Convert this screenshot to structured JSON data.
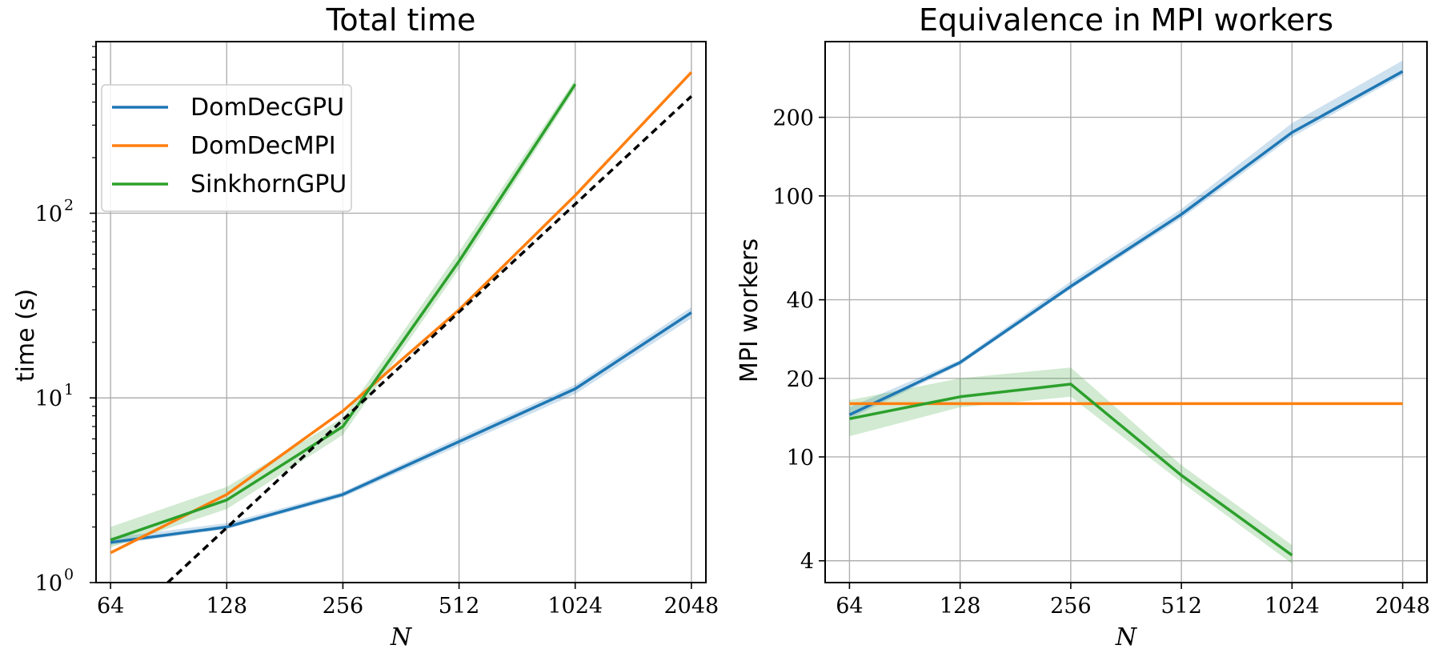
{
  "chart_data": [
    {
      "type": "line",
      "title": "Total time",
      "xlabel": "N",
      "ylabel": "time (s)",
      "xscale": "log2",
      "yscale": "log10",
      "x": [
        64,
        128,
        256,
        512,
        1024,
        2048
      ],
      "xtick_labels": [
        "64",
        "128",
        "256",
        "512",
        "1024",
        "2048"
      ],
      "ylim": [
        1,
        850
      ],
      "yticks": [
        {
          "value": 1,
          "base": "10",
          "exp": "0"
        },
        {
          "value": 10,
          "base": "10",
          "exp": "1"
        },
        {
          "value": 100,
          "base": "10",
          "exp": "2"
        }
      ],
      "grid": true,
      "legend": "upper-left",
      "series": [
        {
          "name": "DomDecGPU",
          "color": "#1f77b4",
          "x": [
            64,
            128,
            256,
            512,
            1024,
            2048
          ],
          "values": [
            1.65,
            2.0,
            3.0,
            5.8,
            11.2,
            29
          ],
          "band_low": [
            1.6,
            1.95,
            2.9,
            5.5,
            10.5,
            27
          ],
          "band_high": [
            1.75,
            2.1,
            3.1,
            6.1,
            11.8,
            31
          ]
        },
        {
          "name": "DomDecMPI",
          "color": "#ff7f0e",
          "x": [
            64,
            128,
            256,
            512,
            1024,
            2048
          ],
          "values": [
            1.45,
            3.0,
            8.5,
            30,
            125,
            580
          ]
        },
        {
          "name": "SinkhornGPU",
          "color": "#2ca02c",
          "x": [
            64,
            128,
            256,
            512,
            1024
          ],
          "values": [
            1.7,
            2.8,
            7.0,
            55,
            500
          ],
          "band_low": [
            1.55,
            2.5,
            6.3,
            50,
            470
          ],
          "band_high": [
            2.0,
            3.3,
            7.8,
            62,
            530
          ]
        },
        {
          "name": "",
          "color": "#000000",
          "dashed": true,
          "x": [
            90,
            2048
          ],
          "values": [
            1.0,
            430
          ]
        }
      ]
    },
    {
      "type": "line",
      "title": "Equivalence in MPI workers",
      "xlabel": "N",
      "ylabel": "MPI workers",
      "xscale": "log2",
      "yscale": "log",
      "x": [
        64,
        128,
        256,
        512,
        1024,
        2048
      ],
      "xtick_labels": [
        "64",
        "128",
        "256",
        "512",
        "1024",
        "2048"
      ],
      "ylim": [
        3.3,
        390
      ],
      "yticks": [
        {
          "value": 4,
          "label": "4"
        },
        {
          "value": 10,
          "label": "10"
        },
        {
          "value": 20,
          "label": "20"
        },
        {
          "value": 40,
          "label": "40"
        },
        {
          "value": 100,
          "label": "100"
        },
        {
          "value": 200,
          "label": "200"
        }
      ],
      "grid": true,
      "series": [
        {
          "name": "DomDecGPU",
          "color": "#1f77b4",
          "x": [
            64,
            128,
            256,
            512,
            1024,
            2048
          ],
          "values": [
            14.5,
            23,
            45,
            85,
            175,
            300
          ],
          "band_low": [
            14.0,
            22.5,
            44,
            82,
            168,
            290
          ],
          "band_high": [
            15.5,
            23.5,
            47,
            89,
            190,
            330
          ]
        },
        {
          "name": "DomDecMPI",
          "color": "#ff7f0e",
          "x": [
            64,
            128,
            256,
            512,
            1024,
            2048
          ],
          "values": [
            16,
            16,
            16,
            16,
            16,
            16
          ]
        },
        {
          "name": "SinkhornGPU",
          "color": "#2ca02c",
          "x": [
            64,
            128,
            256,
            512,
            1024
          ],
          "values": [
            14,
            17,
            19,
            8.5,
            4.2
          ],
          "band_low": [
            12,
            15.5,
            17,
            8,
            3.9
          ],
          "band_high": [
            16.5,
            20,
            22,
            9.3,
            4.6
          ]
        }
      ]
    }
  ]
}
